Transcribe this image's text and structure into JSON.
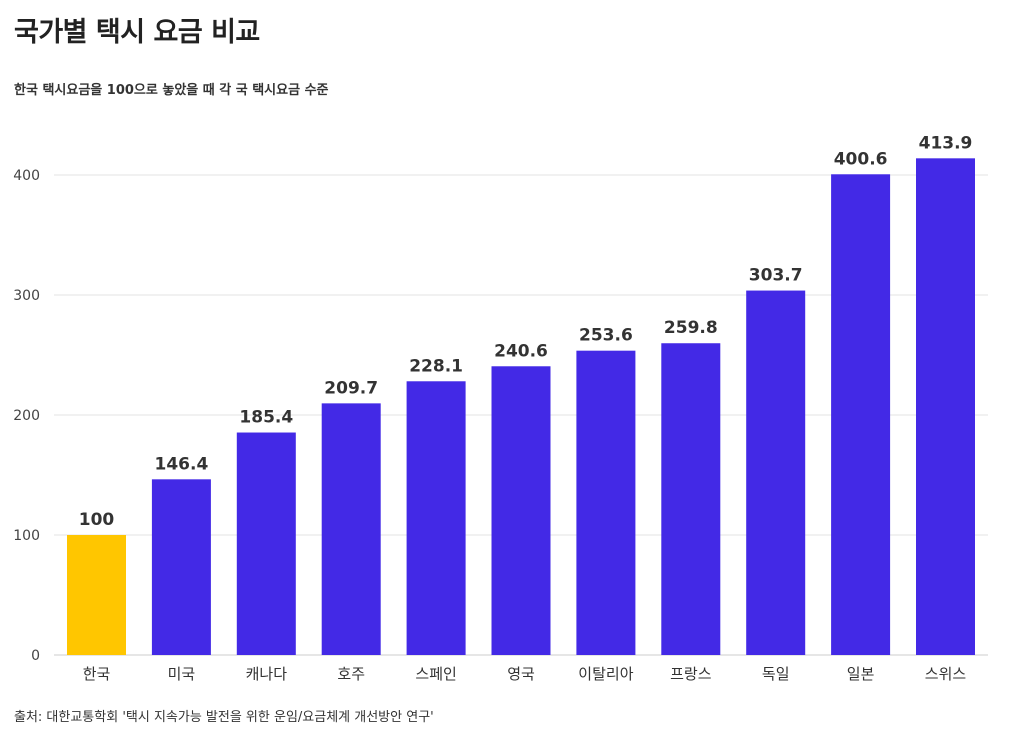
{
  "title": "국가별 택시 요금 비교",
  "subtitle": "한국 택시요금을 100으로 놓았을 때 각 국 택시요금 수준",
  "source": "출처: 대한교통학회 '택시 지속가능 발전을 위한 운임/요금체계 개선방안 연구'",
  "colors": {
    "highlight": "#FFC600",
    "bar": "#4329E6",
    "grid": "#e3e3e3",
    "axis": "#cccccc"
  },
  "chart_data": {
    "type": "bar",
    "title": "국가별 택시 요금 비교",
    "subtitle": "한국 택시요금을 100으로 놓았을 때 각 국 택시요금 수준",
    "categories": [
      "한국",
      "미국",
      "캐나다",
      "호주",
      "스페인",
      "영국",
      "이탈리아",
      "프랑스",
      "독일",
      "일본",
      "스위스"
    ],
    "values": [
      100,
      146.4,
      185.4,
      209.7,
      228.1,
      240.6,
      253.6,
      259.8,
      303.7,
      400.6,
      413.9
    ],
    "value_labels": [
      "100",
      "146.4",
      "185.4",
      "209.7",
      "228.1",
      "240.6",
      "253.6",
      "259.8",
      "303.7",
      "400.6",
      "413.9"
    ],
    "highlight_category": "한국",
    "yticks": [
      0,
      100,
      200,
      300,
      400
    ],
    "ylim": [
      0,
      440
    ],
    "grid": true,
    "legend": "none",
    "xlabel": "",
    "ylabel": ""
  }
}
